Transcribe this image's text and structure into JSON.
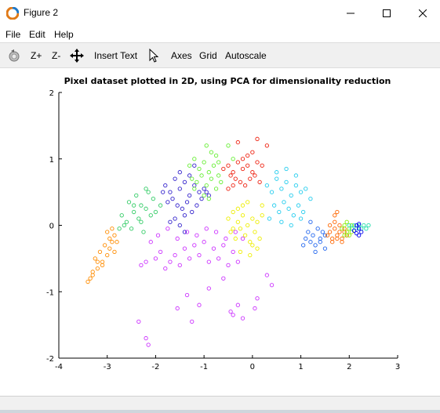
{
  "window": {
    "title": "Figure 2"
  },
  "menu": {
    "file": "File",
    "edit": "Edit",
    "help": "Help"
  },
  "toolbar": {
    "zoom_in": "Z+",
    "zoom_out": "Z-",
    "insert_text": "Insert Text",
    "axes": "Axes",
    "grid": "Grid",
    "autoscale": "Autoscale"
  },
  "chart_data": {
    "type": "scatter",
    "title": "Pixel dataset plotted in 2D, using PCA for dimensionality reduction",
    "xlabel": "",
    "ylabel": "",
    "xlim": [
      -4,
      3
    ],
    "ylim": [
      -2,
      2
    ],
    "x_ticks": [
      "-4",
      "-3",
      "-2",
      "-1",
      "0",
      "1",
      "2",
      "3"
    ],
    "y_ticks": [
      "-2",
      "-1",
      "0",
      "1",
      "2"
    ],
    "grid": false,
    "marker": "circle-open",
    "series": [
      {
        "color": "#ff8c00",
        "x": [
          -3.35,
          -3.3,
          -3.2,
          -3.1,
          -3.0,
          -2.95,
          -2.9,
          -2.85,
          -3.25,
          -3.15,
          -3.05,
          -2.95,
          -3.0,
          -2.9,
          -3.1,
          -3.2,
          -2.8,
          -2.85,
          -3.3,
          -3.4
        ],
        "y": [
          -0.8,
          -0.7,
          -0.65,
          -0.55,
          -0.45,
          -0.35,
          -0.25,
          -0.15,
          -0.5,
          -0.4,
          -0.3,
          -0.2,
          -0.1,
          -0.05,
          -0.6,
          -0.55,
          -0.25,
          -0.4,
          -0.75,
          -0.85
        ]
      },
      {
        "color": "#33cc66",
        "x": [
          -2.7,
          -2.6,
          -2.5,
          -2.45,
          -2.35,
          -2.3,
          -2.2,
          -2.1,
          -2.05,
          -2.55,
          -2.4,
          -2.25,
          -2.15,
          -2.65,
          -2.0,
          -2.3,
          -2.45,
          -2.2,
          -1.9,
          -2.75
        ],
        "y": [
          0.15,
          0.05,
          -0.05,
          0.2,
          0.1,
          0.3,
          0.25,
          0.15,
          0.4,
          0.35,
          0.45,
          -0.1,
          0.5,
          0.0,
          0.2,
          0.05,
          0.3,
          0.55,
          0.3,
          -0.05
        ]
      },
      {
        "color": "#cc33ff",
        "x": [
          -2.3,
          -2.2,
          -2.0,
          -1.9,
          -1.8,
          -1.7,
          -1.6,
          -1.5,
          -1.4,
          -1.3,
          -1.2,
          -1.1,
          -1.0,
          -0.9,
          -0.8,
          -0.7,
          -0.6,
          -0.5,
          -0.4,
          -0.3,
          -0.2,
          -2.1,
          -1.95,
          -1.75,
          -1.55,
          -1.35,
          -1.15,
          -0.95,
          -0.75,
          -0.55,
          -0.35,
          -2.35,
          -2.2,
          -2.15,
          -1.1,
          -0.4,
          -0.3,
          -0.2,
          -1.25,
          -0.45,
          0.05,
          0.1,
          0.4,
          0.3,
          -0.6,
          -0.9,
          -1.35,
          -1.55
        ],
        "y": [
          -0.6,
          -0.55,
          -0.5,
          -0.4,
          -0.65,
          -0.55,
          -0.45,
          -0.6,
          -0.35,
          -0.5,
          -0.3,
          -0.45,
          -0.25,
          -0.55,
          -0.35,
          -0.5,
          -0.3,
          -0.6,
          -0.4,
          -0.55,
          -0.2,
          -0.25,
          -0.15,
          -0.05,
          -0.2,
          -0.1,
          -0.15,
          -0.05,
          -0.1,
          -0.2,
          -0.1,
          -1.45,
          -1.7,
          -1.8,
          -1.2,
          -1.35,
          -1.2,
          -1.4,
          -1.45,
          -1.3,
          -1.25,
          -1.1,
          -0.9,
          -0.75,
          -0.8,
          -0.95,
          -1.05,
          -1.25
        ]
      },
      {
        "color": "#3322cc",
        "x": [
          -1.8,
          -1.7,
          -1.6,
          -1.5,
          -1.4,
          -1.3,
          -1.2,
          -1.1,
          -1.0,
          -0.9,
          -1.75,
          -1.65,
          -1.55,
          -1.45,
          -1.35,
          -1.25,
          -1.15,
          -1.05,
          -0.95,
          -1.85,
          -1.5,
          -1.4,
          -1.3,
          -1.2,
          -1.6,
          -1.7,
          -1.5,
          -1.4
        ],
        "y": [
          0.6,
          0.5,
          0.7,
          0.55,
          0.65,
          0.45,
          0.6,
          0.5,
          0.55,
          0.45,
          0.35,
          0.4,
          0.3,
          0.25,
          0.35,
          0.2,
          0.3,
          0.4,
          0.5,
          0.5,
          0.8,
          0.15,
          0.75,
          0.9,
          0.1,
          0.05,
          0.0,
          -0.1
        ]
      },
      {
        "color": "#66ee33",
        "x": [
          -1.3,
          -1.2,
          -1.1,
          -1.0,
          -0.9,
          -0.8,
          -0.7,
          -1.25,
          -1.15,
          -1.05,
          -0.95,
          -0.85,
          -0.75,
          -0.65,
          -0.95,
          -0.85,
          -0.75,
          -0.7,
          -1.2,
          -1.0,
          -0.9,
          -0.5,
          -0.4
        ],
        "y": [
          0.9,
          1.0,
          0.85,
          0.95,
          0.8,
          0.9,
          0.75,
          0.7,
          0.65,
          0.75,
          0.6,
          0.7,
          0.55,
          0.65,
          1.2,
          1.1,
          1.05,
          0.95,
          0.55,
          0.45,
          0.4,
          1.2,
          1.0
        ]
      },
      {
        "color": "#ee2211",
        "x": [
          -0.6,
          -0.5,
          -0.4,
          -0.3,
          -0.2,
          -0.1,
          0.0,
          0.1,
          0.2,
          -0.45,
          -0.35,
          -0.25,
          -0.15,
          -0.05,
          0.05,
          0.15,
          -0.2,
          -0.1,
          0.0,
          -0.3,
          0.1,
          0.3,
          -0.5,
          -0.4
        ],
        "y": [
          0.85,
          0.9,
          0.8,
          0.95,
          0.85,
          0.9,
          0.8,
          0.95,
          0.9,
          0.75,
          0.7,
          0.65,
          0.6,
          0.7,
          0.75,
          0.65,
          1.0,
          1.05,
          1.1,
          1.25,
          1.3,
          1.2,
          0.55,
          0.6
        ]
      },
      {
        "color": "#eeee00",
        "x": [
          -0.5,
          -0.4,
          -0.3,
          -0.2,
          -0.1,
          0.0,
          0.1,
          0.2,
          -0.45,
          -0.35,
          -0.25,
          -0.15,
          -0.05,
          0.05,
          0.15,
          -0.3,
          -0.2,
          -0.1,
          0.0,
          0.1,
          -0.4,
          0.2,
          -0.25,
          -0.05
        ],
        "y": [
          0.1,
          0.2,
          0.05,
          0.15,
          0.0,
          0.1,
          0.05,
          0.15,
          -0.1,
          -0.2,
          -0.05,
          -0.15,
          -0.25,
          -0.1,
          -0.2,
          0.25,
          0.3,
          0.35,
          -0.3,
          -0.35,
          -0.05,
          0.3,
          -0.4,
          -0.45
        ]
      },
      {
        "color": "#22ccee",
        "x": [
          0.3,
          0.4,
          0.5,
          0.6,
          0.7,
          0.8,
          0.9,
          1.0,
          1.1,
          0.45,
          0.55,
          0.65,
          0.75,
          0.85,
          0.95,
          1.05,
          0.35,
          0.6,
          0.8,
          1.0,
          0.5,
          0.7,
          0.9,
          1.2
        ],
        "y": [
          0.6,
          0.5,
          0.7,
          0.55,
          0.65,
          0.45,
          0.6,
          0.5,
          0.55,
          0.3,
          0.2,
          0.35,
          0.25,
          0.15,
          0.3,
          0.2,
          0.1,
          0.05,
          0.0,
          0.1,
          0.8,
          0.85,
          0.75,
          0.4
        ]
      },
      {
        "color": "#2266ee",
        "x": [
          1.1,
          1.2,
          1.3,
          1.4,
          1.5,
          1.15,
          1.25,
          1.35,
          1.45,
          1.05,
          1.3,
          1.4,
          1.5,
          1.2
        ],
        "y": [
          -0.2,
          -0.25,
          -0.3,
          -0.2,
          -0.35,
          -0.1,
          -0.15,
          -0.05,
          -0.1,
          -0.3,
          -0.4,
          -0.25,
          -0.15,
          0.05
        ]
      },
      {
        "color": "#ff6600",
        "x": [
          1.55,
          1.6,
          1.65,
          1.7,
          1.75,
          1.8,
          1.85,
          1.9,
          1.95,
          1.6,
          1.7,
          1.8,
          1.9,
          1.65,
          1.75,
          1.85,
          1.7,
          1.75
        ],
        "y": [
          -0.15,
          -0.1,
          -0.2,
          -0.05,
          -0.15,
          -0.1,
          -0.2,
          -0.05,
          -0.15,
          0.0,
          0.05,
          0.0,
          -0.1,
          -0.25,
          -0.2,
          -0.25,
          0.15,
          0.2
        ]
      },
      {
        "color": "#88ee00",
        "x": [
          1.85,
          1.9,
          1.95,
          2.0,
          2.05,
          1.9,
          1.95,
          2.0,
          2.05
        ],
        "y": [
          -0.05,
          0.0,
          -0.1,
          -0.05,
          0.0,
          -0.15,
          0.05,
          -0.15,
          -0.1
        ]
      },
      {
        "color": "#22ddaa",
        "x": [
          2.0,
          2.05,
          2.1,
          2.15,
          2.2,
          2.25,
          2.3,
          2.35,
          2.4
        ],
        "y": [
          0.0,
          -0.05,
          0.0,
          -0.05,
          0.0,
          -0.05,
          0.0,
          -0.05,
          0.0
        ]
      },
      {
        "color": "#0000ee",
        "x": [
          2.1,
          2.15,
          2.2,
          2.25,
          2.15,
          2.2,
          2.2
        ],
        "y": [
          -0.08,
          -0.12,
          -0.05,
          -0.1,
          0.0,
          0.02,
          -0.15
        ]
      }
    ]
  }
}
